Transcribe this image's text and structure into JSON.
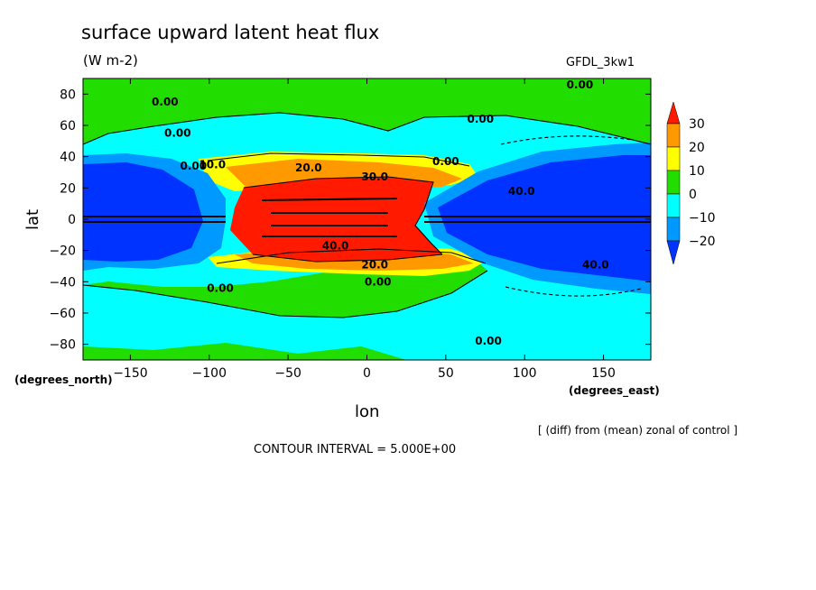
{
  "chart_data": {
    "type": "heatmap",
    "title": "surface upward latent heat flux",
    "subtitle": "(W m-2)",
    "model_label": "GFDL_3kw1",
    "xlabel": "lon",
    "ylabel": "lat",
    "x_units": "(degrees_east)",
    "y_units": "(degrees_north)",
    "xlim": [
      -180,
      180
    ],
    "ylim": [
      -90,
      90
    ],
    "x_ticks": [
      -150,
      -100,
      -50,
      0,
      50,
      100,
      150
    ],
    "y_ticks": [
      80,
      60,
      40,
      20,
      0,
      -20,
      -40,
      -60,
      -80
    ],
    "x_tick_labels": [
      "−150",
      "−100",
      "−50",
      "0",
      "50",
      "100",
      "150"
    ],
    "y_tick_labels": [
      "80",
      "60",
      "40",
      "20",
      "0",
      "−20",
      "−40",
      "−60",
      "−80"
    ],
    "colorbar": {
      "levels": [
        30,
        20,
        10,
        0,
        -10,
        -20
      ],
      "labels": [
        "30",
        "20",
        "10",
        "0",
        "−10",
        "−20"
      ],
      "colors": [
        "#ff1a00",
        "#ff9900",
        "#ffff00",
        "#22dd00",
        "#00ffff",
        "#0099ff",
        "#0033ff"
      ]
    },
    "contour_labels": [
      {
        "lon": -128,
        "lat": 75,
        "text": "0.00"
      },
      {
        "lon": -120,
        "lat": 55,
        "text": "0.00"
      },
      {
        "lon": -110,
        "lat": 34,
        "text": "0.00"
      },
      {
        "lon": -98,
        "lat": 35,
        "text": "10.0"
      },
      {
        "lon": -37,
        "lat": 33,
        "text": "20.0"
      },
      {
        "lon": 5,
        "lat": 27,
        "text": "30.0"
      },
      {
        "lon": 50,
        "lat": 37,
        "text": "0.00"
      },
      {
        "lon": 72,
        "lat": 64,
        "text": "0.00"
      },
      {
        "lon": 135,
        "lat": 86,
        "text": "0.00"
      },
      {
        "lon": 98,
        "lat": 18,
        "text": "40.0"
      },
      {
        "lon": -20,
        "lat": -17,
        "text": "40.0"
      },
      {
        "lon": 5,
        "lat": -29,
        "text": "20.0"
      },
      {
        "lon": 7,
        "lat": -40,
        "text": "0.00"
      },
      {
        "lon": -93,
        "lat": -44,
        "text": "0.00"
      },
      {
        "lon": 145,
        "lat": -29,
        "text": "40.0"
      },
      {
        "lon": 77,
        "lat": -78,
        "text": "0.00"
      }
    ],
    "annotation": "[ (diff) from (mean) zonal of control ]",
    "contour_interval": "CONTOUR INTERVAL = 5.000E+00"
  }
}
